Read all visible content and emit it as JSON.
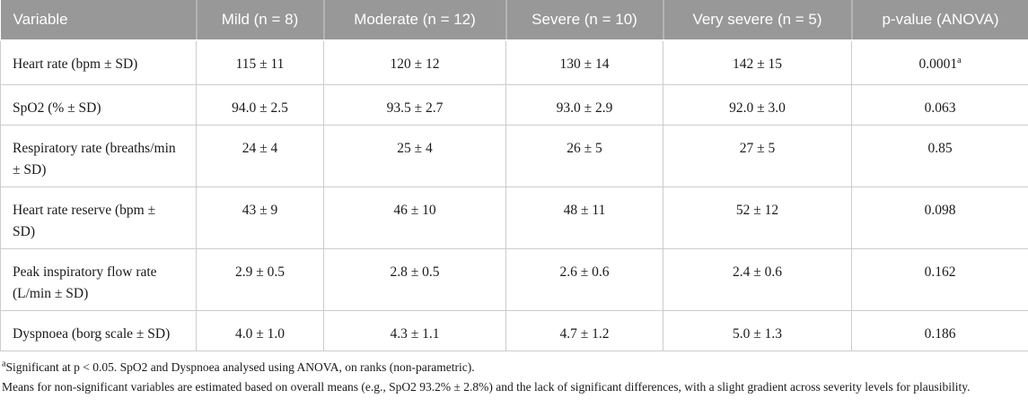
{
  "table": {
    "columns": [
      "Variable",
      "Mild (n = 8)",
      "Moderate (n = 12)",
      "Severe (n = 10)",
      "Very severe (n = 5)",
      "p-value (ANOVA)"
    ],
    "rows": [
      {
        "variable": "Heart rate (bpm ± SD)",
        "values": [
          "115 ± 11",
          "120 ± 12",
          "130 ± 14",
          "142 ± 15"
        ],
        "p": "0.0001",
        "p_sup": "a"
      },
      {
        "variable": "SpO2 (% ± SD)",
        "values": [
          "94.0 ± 2.5",
          "93.5 ± 2.7",
          "93.0 ± 2.9",
          "92.0 ± 3.0"
        ],
        "p": "0.063"
      },
      {
        "variable": "Respiratory rate (breaths/min ± SD)",
        "values": [
          "24 ± 4",
          "25 ± 4",
          "26 ± 5",
          "27 ± 5"
        ],
        "p": "0.85"
      },
      {
        "variable": "Heart rate reserve (bpm ± SD)",
        "values": [
          "43 ± 9",
          "46 ± 10",
          "48 ± 11",
          "52 ± 12"
        ],
        "p": "0.098"
      },
      {
        "variable": "Peak inspiratory flow rate (L/min ± SD)",
        "values": [
          "2.9 ± 0.5",
          "2.8 ± 0.5",
          "2.6 ± 0.6",
          "2.4 ± 0.6"
        ],
        "p": "0.162"
      },
      {
        "variable": "Dyspnoea (borg scale ± SD)",
        "values": [
          "4.0 ± 1.0",
          "4.3 ± 1.1",
          "4.7 ± 1.2",
          "5.0 ± 1.3"
        ],
        "p": "0.186"
      }
    ]
  },
  "footnotes": {
    "note1_sup": "a",
    "note1": "Significant at p < 0.05. SpO2 and Dyspnoea analysed using ANOVA, on ranks (non-parametric).",
    "note2": "Means for non-significant variables are estimated based on overall means (e.g., SpO2 93.2% ± 2.8%) and the lack of significant differences, with a slight gradient across severity levels for plausibility."
  },
  "colors": {
    "header_bg": "#989898",
    "header_text": "#ffffff",
    "body_border": "#cccccc",
    "body_text": "#1a1a1a"
  }
}
